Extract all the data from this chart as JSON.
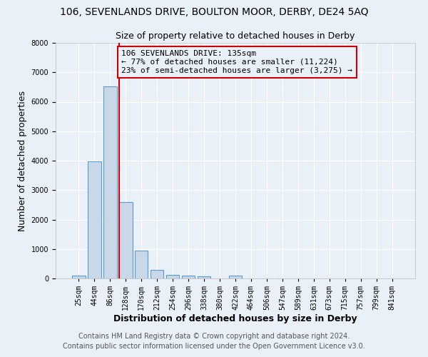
{
  "title1": "106, SEVENLANDS DRIVE, BOULTON MOOR, DERBY, DE24 5AQ",
  "title2": "Size of property relative to detached houses in Derby",
  "xlabel": "Distribution of detached houses by size in Derby",
  "ylabel": "Number of detached properties",
  "bar_color": "#c8d8e8",
  "bar_edge_color": "#5b9bd5",
  "annotation_box_color": "#cc0000",
  "vline_color": "#cc0000",
  "background_color": "#eaf0f8",
  "grid_color": "#ffffff",
  "categories": [
    "25sqm",
    "44sqm",
    "86sqm",
    "128sqm",
    "170sqm",
    "212sqm",
    "254sqm",
    "296sqm",
    "338sqm",
    "380sqm",
    "422sqm",
    "464sqm",
    "506sqm",
    "547sqm",
    "589sqm",
    "631sqm",
    "673sqm",
    "715sqm",
    "757sqm",
    "799sqm",
    "841sqm"
  ],
  "values": [
    100,
    3980,
    6520,
    2600,
    950,
    300,
    110,
    100,
    80,
    0,
    100,
    0,
    0,
    0,
    0,
    0,
    0,
    0,
    0,
    0,
    0
  ],
  "ylim": [
    0,
    8000
  ],
  "annotation_text": "106 SEVENLANDS DRIVE: 135sqm\n← 77% of detached houses are smaller (11,224)\n23% of semi-detached houses are larger (3,275) →",
  "footnote1": "Contains HM Land Registry data © Crown copyright and database right 2024.",
  "footnote2": "Contains public sector information licensed under the Open Government Licence v3.0.",
  "title1_fontsize": 10,
  "title2_fontsize": 9,
  "axis_label_fontsize": 9,
  "tick_fontsize": 7,
  "annotation_fontsize": 8,
  "footnote_fontsize": 7
}
